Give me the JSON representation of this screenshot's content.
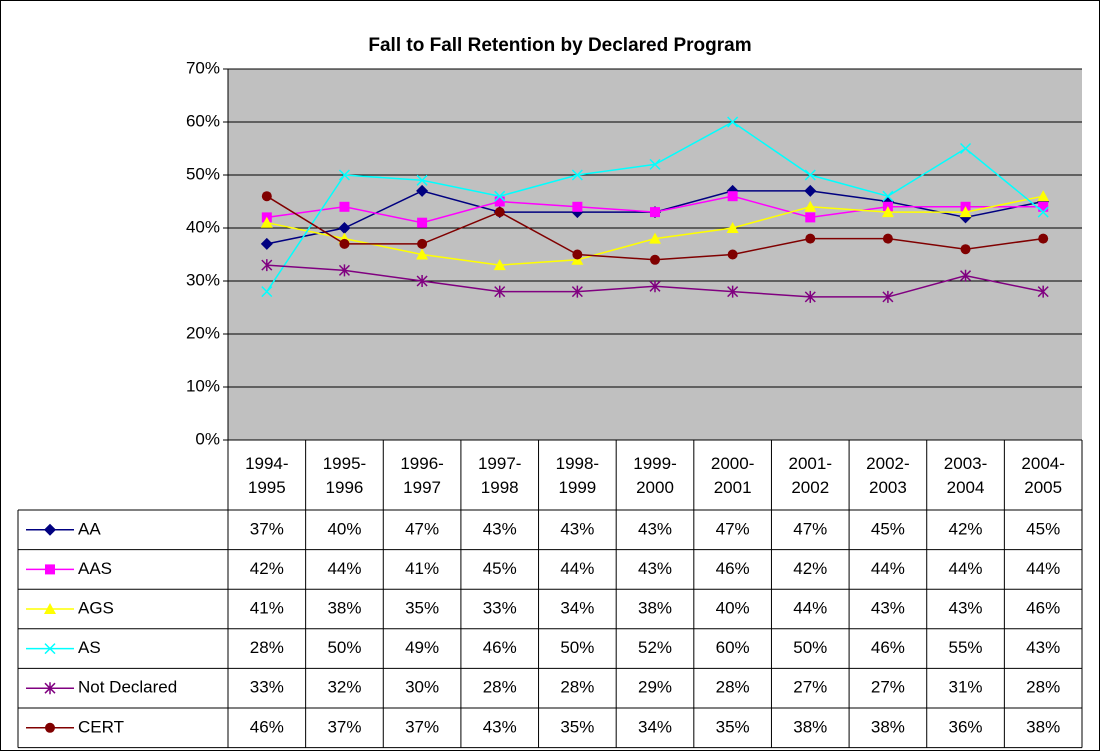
{
  "chart_data": {
    "type": "line",
    "title": "Fall to Fall Retention by Declared Program",
    "categories": [
      "1994-1995",
      "1995-1996",
      "1996-1997",
      "1997-1998",
      "1998-1999",
      "1999-2000",
      "2000-2001",
      "2001-2002",
      "2002-2003",
      "2003-2004",
      "2004-2005"
    ],
    "ylim": [
      0,
      70
    ],
    "yticks": [
      {
        "value": 0,
        "label": "0%"
      },
      {
        "value": 10,
        "label": "10%"
      },
      {
        "value": 20,
        "label": "20%"
      },
      {
        "value": 30,
        "label": "30%"
      },
      {
        "value": 40,
        "label": "40%"
      },
      {
        "value": 50,
        "label": "50%"
      },
      {
        "value": 60,
        "label": "60%"
      },
      {
        "value": 70,
        "label": "70%"
      }
    ],
    "grid": true,
    "series": [
      {
        "name": "AA",
        "color": "#000080",
        "marker": "diamond",
        "values": [
          37,
          40,
          47,
          43,
          43,
          43,
          47,
          47,
          45,
          42,
          45
        ],
        "value_labels": [
          "37%",
          "40%",
          "47%",
          "43%",
          "43%",
          "43%",
          "47%",
          "47%",
          "45%",
          "42%",
          "45%"
        ]
      },
      {
        "name": "AAS",
        "color": "#FF00FF",
        "marker": "square",
        "values": [
          42,
          44,
          41,
          45,
          44,
          43,
          46,
          42,
          44,
          44,
          44
        ],
        "value_labels": [
          "42%",
          "44%",
          "41%",
          "45%",
          "44%",
          "43%",
          "46%",
          "42%",
          "44%",
          "44%",
          "44%"
        ]
      },
      {
        "name": "AGS",
        "color": "#FFFF00",
        "marker": "triangle",
        "values": [
          41,
          38,
          35,
          33,
          34,
          38,
          40,
          44,
          43,
          43,
          46
        ],
        "value_labels": [
          "41%",
          "38%",
          "35%",
          "33%",
          "34%",
          "38%",
          "40%",
          "44%",
          "43%",
          "43%",
          "46%"
        ]
      },
      {
        "name": "AS",
        "color": "#00FFFF",
        "marker": "x",
        "values": [
          28,
          50,
          49,
          46,
          50,
          52,
          60,
          50,
          46,
          55,
          43
        ],
        "value_labels": [
          "28%",
          "50%",
          "49%",
          "46%",
          "50%",
          "52%",
          "60%",
          "50%",
          "46%",
          "55%",
          "43%"
        ]
      },
      {
        "name": "Not Declared",
        "color": "#800080",
        "marker": "star",
        "values": [
          33,
          32,
          30,
          28,
          28,
          29,
          28,
          27,
          27,
          31,
          28
        ],
        "value_labels": [
          "33%",
          "32%",
          "30%",
          "28%",
          "28%",
          "29%",
          "28%",
          "27%",
          "27%",
          "31%",
          "28%"
        ]
      },
      {
        "name": "CERT",
        "color": "#800000",
        "marker": "circle",
        "values": [
          46,
          37,
          37,
          43,
          35,
          34,
          35,
          38,
          38,
          36,
          38
        ],
        "value_labels": [
          "46%",
          "37%",
          "37%",
          "43%",
          "35%",
          "34%",
          "35%",
          "38%",
          "38%",
          "36%",
          "38%"
        ]
      }
    ]
  }
}
